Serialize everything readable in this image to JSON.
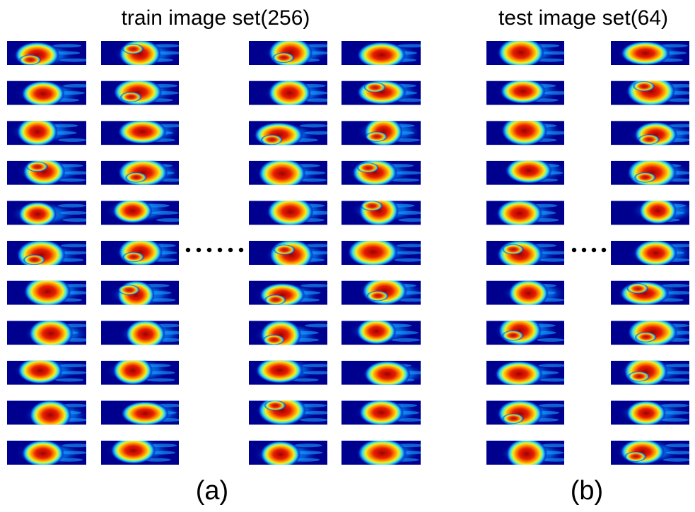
{
  "figure": {
    "panels": [
      {
        "title": "train image set(256)",
        "label": "(a)"
      },
      {
        "title": "test image set(64)",
        "label": "(b)"
      }
    ]
  }
}
